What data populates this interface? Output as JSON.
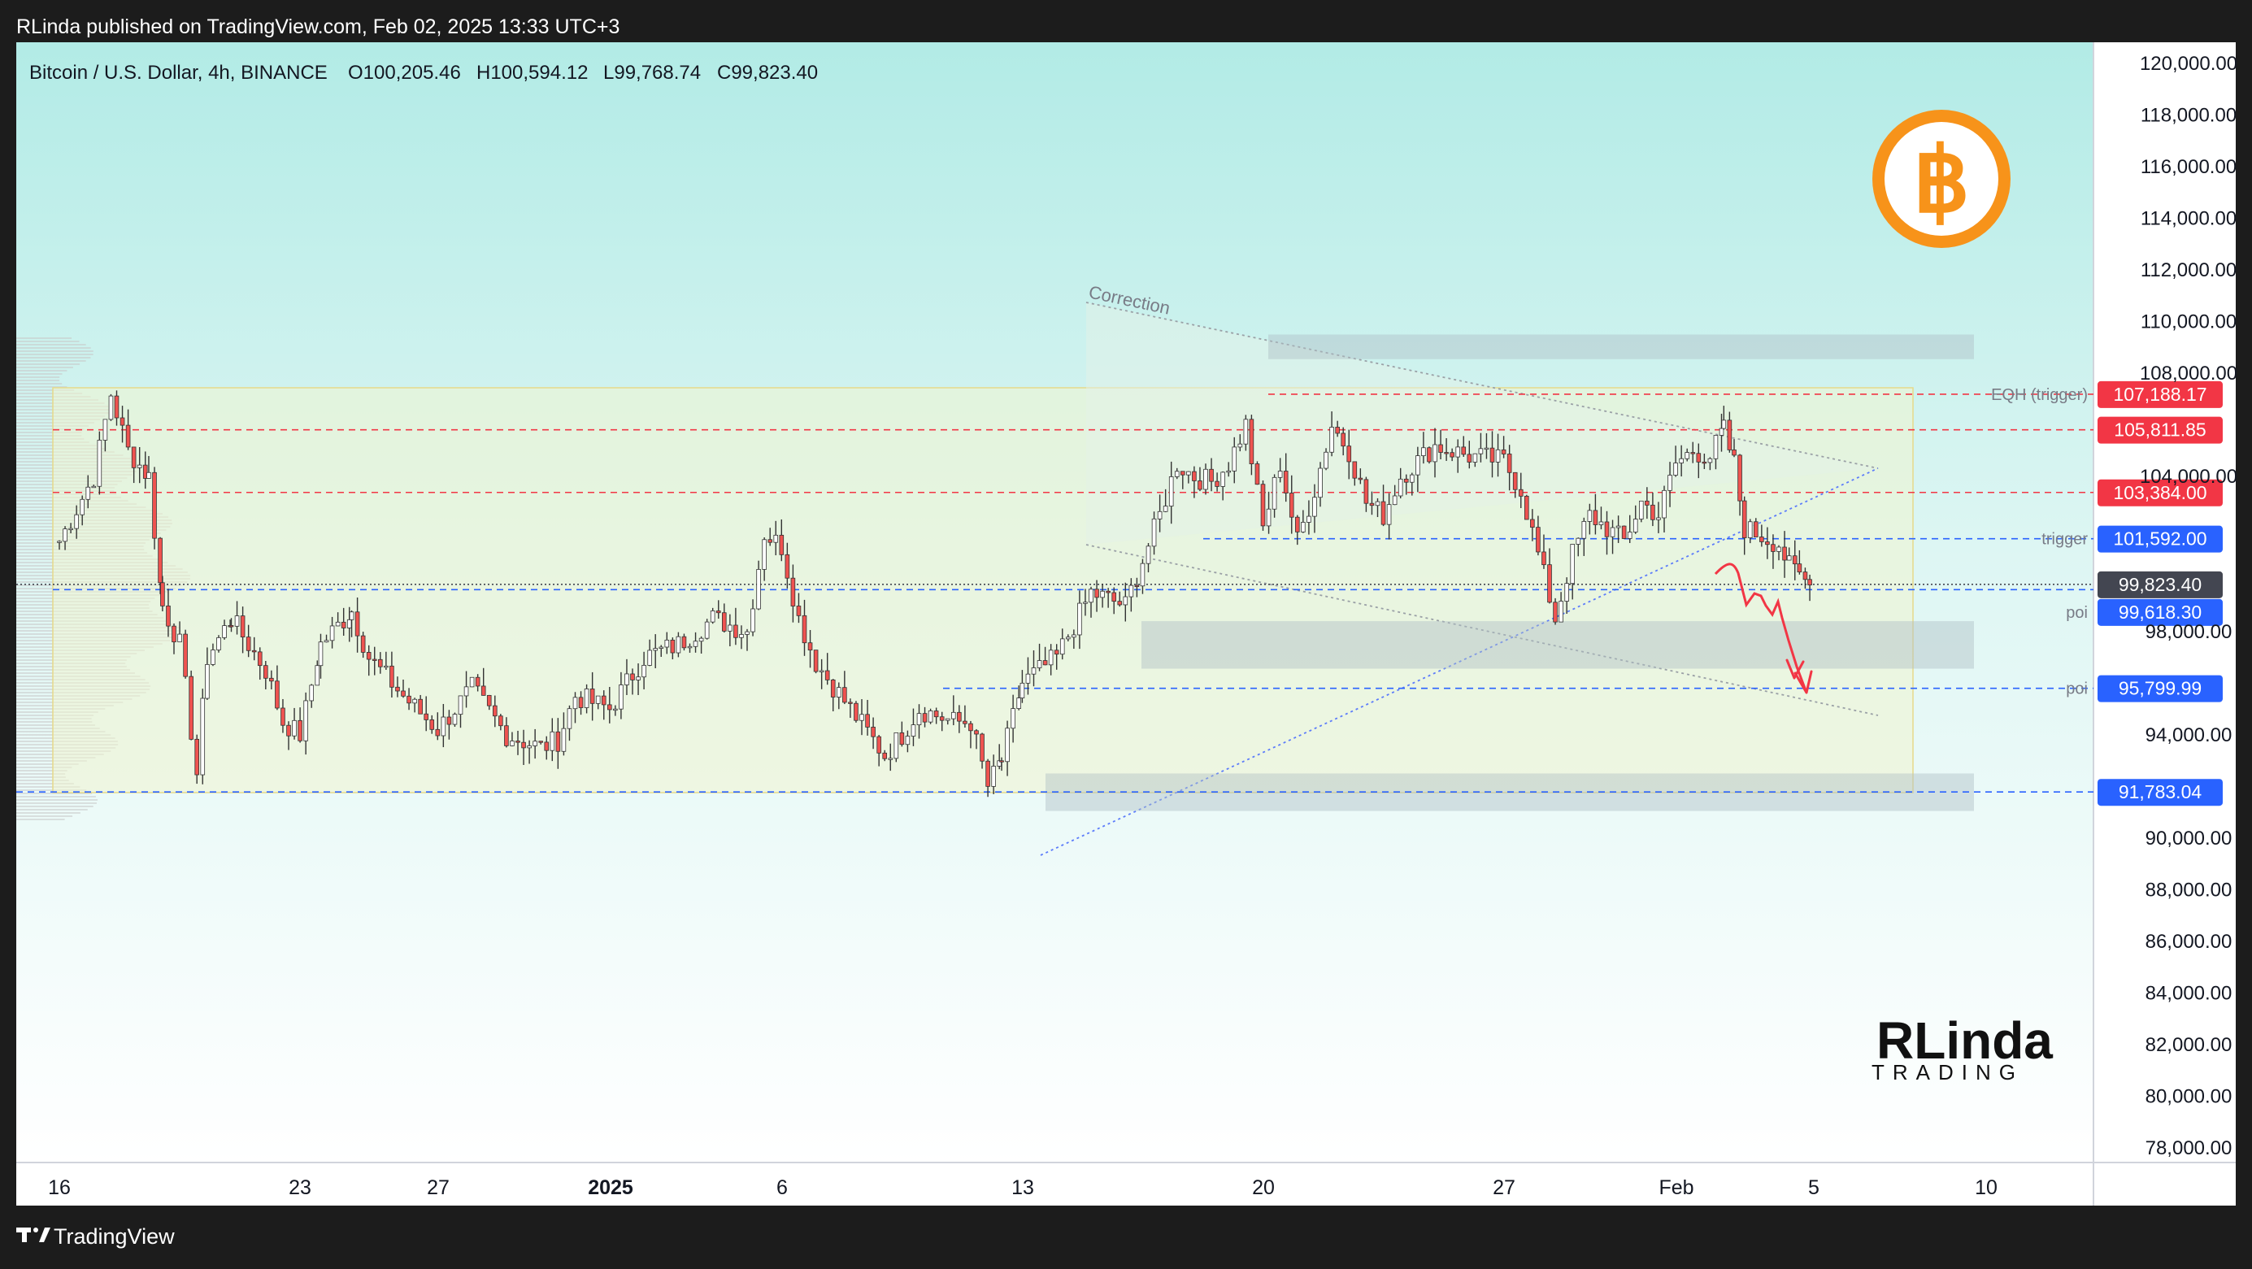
{
  "header": {
    "published": "RLinda published on TradingView.com, Feb 02, 2025 13:33 UTC+3"
  },
  "legend": {
    "symbol": "Bitcoin / U.S. Dollar, 4h, BINANCE",
    "open": "O100,205.46",
    "high": "H100,594.12",
    "low": "L99,768.74",
    "close": "C99,823.40"
  },
  "footer": {
    "brand": "TradingView"
  },
  "watermark": {
    "line1": "RLinda",
    "line2": "TRADING"
  },
  "colors": {
    "bull": "#26a69a",
    "bear": "#ef5350",
    "candle_body": "#333333",
    "bg_top": "#b2ebe6",
    "bg_bottom": "#ffffff",
    "btc_orange": "#f7931a",
    "red_label": "#f23645",
    "blue_label": "#2962ff",
    "price_label": "#434651"
  },
  "chart_data": {
    "type": "candlestick",
    "title": "Bitcoin / U.S. Dollar, 4h, BINANCE",
    "y_axis": {
      "ticks": [
        "120,000.00",
        "118,000.00",
        "116,000.00",
        "114,000.00",
        "112,000.00",
        "110,000.00",
        "108,000.00",
        "104,000.00",
        "98,000.00",
        "94,000.00",
        "90,000.00",
        "88,000.00",
        "86,000.00",
        "84,000.00",
        "82,000.00",
        "80,000.00",
        "78,000.00"
      ],
      "range": [
        77000,
        121500
      ]
    },
    "x_axis": {
      "ticks": [
        "16",
        "23",
        "27",
        "2025",
        "6",
        "13",
        "20",
        "27",
        "Feb",
        "5",
        "10"
      ]
    },
    "price_lines": [
      {
        "value": 107188.17,
        "label": "107,188.17",
        "color": "#f23645",
        "style": "dashed",
        "tag": "EQH (trigger)"
      },
      {
        "value": 105811.85,
        "label": "105,811.85",
        "color": "#f23645",
        "style": "dashed",
        "tag": ""
      },
      {
        "value": 103384.0,
        "label": "103,384.00",
        "color": "#f23645",
        "style": "dashed",
        "tag": ""
      },
      {
        "value": 101592.0,
        "label": "101,592.00",
        "color": "#2962ff",
        "style": "dashed",
        "tag": "trigger"
      },
      {
        "value": 99823.4,
        "label": "99,823.40",
        "color": "#434651",
        "style": "dotted",
        "tag": ""
      },
      {
        "value": 99618.3,
        "label": "99,618.30",
        "color": "#2962ff",
        "style": "dashed",
        "tag": "poi"
      },
      {
        "value": 95799.99,
        "label": "95,799.99",
        "color": "#2962ff",
        "style": "dashed",
        "tag": "poi"
      },
      {
        "value": 91783.04,
        "label": "91,783.04",
        "color": "#2962ff",
        "style": "dashed",
        "tag": ""
      }
    ],
    "zones": [
      {
        "from": 108800,
        "to": 109500
      },
      {
        "from": 97000,
        "to": 98400
      },
      {
        "from": 91300,
        "to": 92500
      }
    ],
    "annotations": [
      "Correction"
    ],
    "anchors": [
      [
        16.0,
        101500
      ],
      [
        17.0,
        104000
      ],
      [
        17.5,
        107200
      ],
      [
        18.0,
        105000
      ],
      [
        18.6,
        104000
      ],
      [
        19.0,
        99000
      ],
      [
        19.5,
        97500
      ],
      [
        20.0,
        92500
      ],
      [
        20.3,
        97000
      ],
      [
        21.0,
        98500
      ],
      [
        22.0,
        96500
      ],
      [
        22.5,
        94500
      ],
      [
        23.0,
        94000
      ],
      [
        23.6,
        97500
      ],
      [
        24.5,
        98800
      ],
      [
        25.0,
        97000
      ],
      [
        26.0,
        95500
      ],
      [
        27.0,
        94200
      ],
      [
        28.0,
        95800
      ],
      [
        29.0,
        94000
      ],
      [
        30.0,
        93500
      ],
      [
        30.5,
        93800
      ],
      [
        31.0,
        95500
      ],
      [
        32.0,
        95000
      ],
      [
        33.0,
        97000
      ],
      [
        34.0,
        97500
      ],
      [
        35.0,
        98500
      ],
      [
        36.0,
        98000
      ],
      [
        36.5,
        101800
      ],
      [
        37.0,
        101300
      ],
      [
        37.5,
        98500
      ],
      [
        38.0,
        96800
      ],
      [
        39.0,
        95000
      ],
      [
        40.0,
        93200
      ],
      [
        40.5,
        94000
      ],
      [
        41.0,
        95000
      ],
      [
        42.0,
        94500
      ],
      [
        42.5,
        94500
      ],
      [
        43.0,
        92000
      ],
      [
        43.4,
        93000
      ],
      [
        44.0,
        96000
      ],
      [
        45.0,
        97000
      ],
      [
        46.0,
        99500
      ],
      [
        47.0,
        99000
      ],
      [
        48.0,
        102500
      ],
      [
        48.5,
        104500
      ],
      [
        49.0,
        104000
      ],
      [
        49.5,
        103800
      ],
      [
        50.0,
        104500
      ],
      [
        50.5,
        106000
      ],
      [
        51.0,
        102000
      ],
      [
        51.5,
        104500
      ],
      [
        52.0,
        101500
      ],
      [
        52.5,
        103500
      ],
      [
        53.0,
        106000
      ],
      [
        53.5,
        105000
      ],
      [
        54.0,
        103000
      ],
      [
        54.5,
        102500
      ],
      [
        55.0,
        104000
      ],
      [
        56.0,
        105200
      ],
      [
        57.0,
        104800
      ],
      [
        58.0,
        104600
      ],
      [
        58.5,
        103500
      ],
      [
        59.0,
        101000
      ],
      [
        59.5,
        98500
      ],
      [
        60.0,
        101000
      ],
      [
        60.5,
        102500
      ],
      [
        61.0,
        102000
      ],
      [
        61.5,
        101500
      ],
      [
        62.0,
        103000
      ],
      [
        62.5,
        102500
      ],
      [
        63.0,
        104500
      ],
      [
        63.5,
        105000
      ],
      [
        64.0,
        104800
      ],
      [
        64.4,
        105800
      ],
      [
        64.7,
        104500
      ],
      [
        65.0,
        102000
      ],
      [
        66.0,
        101400
      ],
      [
        66.3,
        100500
      ],
      [
        66.6,
        100200
      ],
      [
        66.9,
        99800
      ]
    ]
  }
}
